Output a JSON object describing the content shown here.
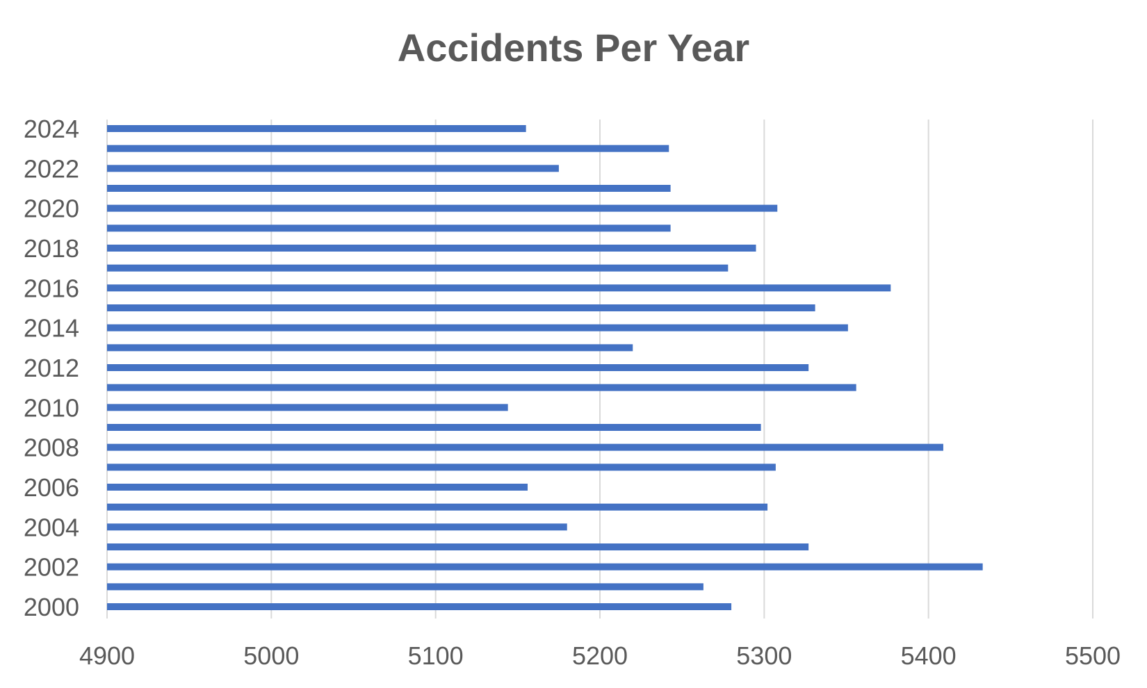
{
  "chart_data": {
    "type": "bar",
    "orientation": "horizontal",
    "title": "Accidents Per Year",
    "xlabel": "",
    "ylabel": "",
    "xlim": [
      4900,
      5500
    ],
    "x_ticks": [
      4900,
      5000,
      5100,
      5200,
      5300,
      5400,
      5500
    ],
    "y_tick_labels": [
      "2000",
      "2002",
      "2004",
      "2006",
      "2008",
      "2010",
      "2012",
      "2014",
      "2016",
      "2018",
      "2020",
      "2022",
      "2024"
    ],
    "grid": true,
    "legend": "none",
    "bar_color": "#4472C4",
    "categories": [
      "2000",
      "2001",
      "2002",
      "2003",
      "2004",
      "2005",
      "2006",
      "2007",
      "2008",
      "2009",
      "2010",
      "2011",
      "2012",
      "2013",
      "2014",
      "2015",
      "2016",
      "2017",
      "2018",
      "2019",
      "2020",
      "2021",
      "2022",
      "2023",
      "2024"
    ],
    "values": [
      5280,
      5263,
      5433,
      5327,
      5180,
      5302,
      5156,
      5307,
      5409,
      5298,
      5144,
      5356,
      5327,
      5220,
      5351,
      5331,
      5377,
      5278,
      5295,
      5243,
      5308,
      5243,
      5175,
      5242,
      5155
    ]
  }
}
